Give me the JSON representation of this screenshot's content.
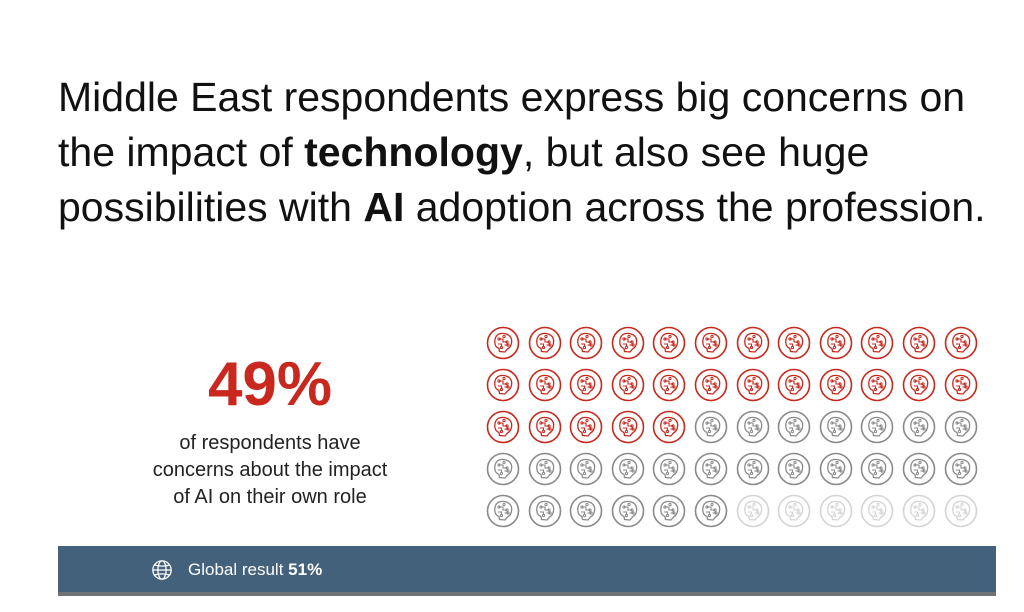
{
  "headline": {
    "part1": "Middle East respondents express big concerns on the impact of ",
    "emphasis1": "technology",
    "part2": ", but also see huge possibilities with ",
    "emphasis2": "AI",
    "part3": " adoption across the profession."
  },
  "stat": {
    "value": "49%",
    "caption_line1": "of respondents have",
    "caption_line2": "concerns about the impact",
    "caption_line3": "of AI on their own role"
  },
  "icon_grid": {
    "icon": "ai-chip-brain-icon",
    "total": 60,
    "red_count": 29,
    "gray_count": 25,
    "light_count": 6,
    "colors": {
      "red": "#c8281e",
      "gray": "#8a8a8a",
      "light": "#d4d4d4"
    }
  },
  "banner": {
    "icon": "globe-icon",
    "label": "Global result",
    "value": "51%",
    "background": "#44617c"
  }
}
